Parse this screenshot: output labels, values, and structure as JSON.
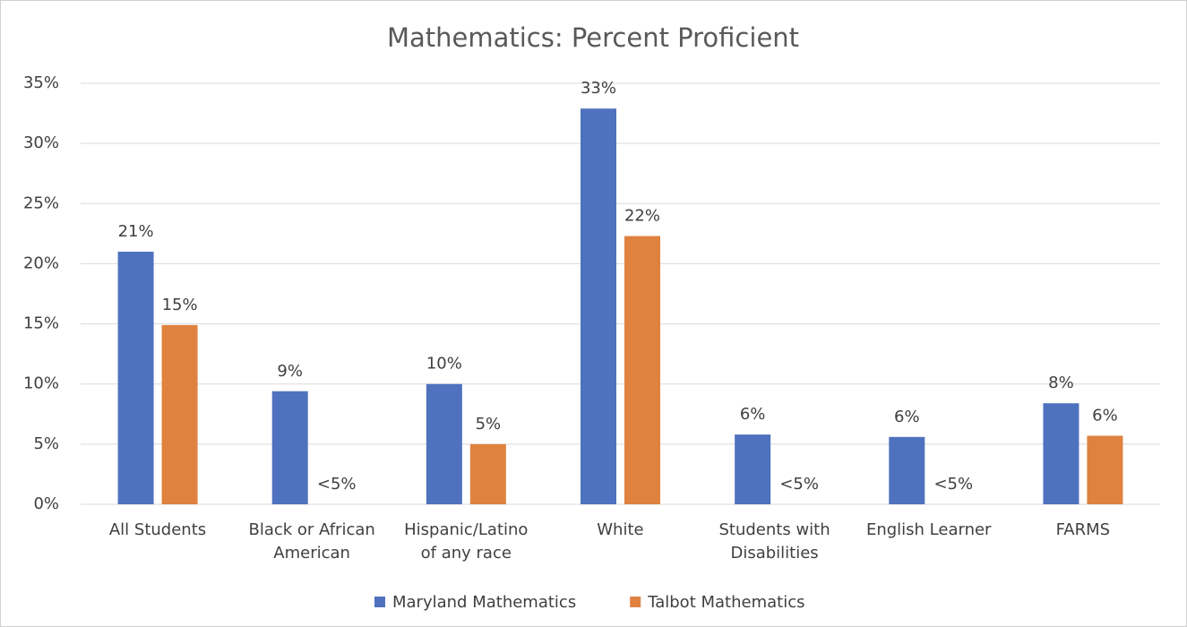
{
  "chart_data": {
    "type": "bar",
    "title": "Mathematics: Percent Proficient",
    "categories": [
      "All Students",
      "Black or African\nAmerican",
      "Hispanic/Latino\nof any race",
      "White",
      "Students with\nDisabilities",
      "English Learner",
      "FARMS"
    ],
    "series": [
      {
        "name": "Maryland Mathematics",
        "color": "#4f72bf",
        "values": [
          21,
          9.4,
          10,
          32.9,
          5.8,
          5.6,
          8.4
        ],
        "value_labels": [
          "21%",
          "9%",
          "10%",
          "33%",
          "6%",
          "6%",
          "8%"
        ]
      },
      {
        "name": "Talbot Mathematics",
        "color": "#e0823f",
        "values": [
          14.9,
          null,
          5,
          22.3,
          null,
          null,
          5.7
        ],
        "value_labels": [
          "15%",
          "<5%",
          "5%",
          "22%",
          "<5%",
          "<5%",
          "6%"
        ]
      }
    ],
    "ylim": [
      0,
      35
    ],
    "yticks": [
      {
        "value": 0,
        "label": "0%"
      },
      {
        "value": 5,
        "label": "5%"
      },
      {
        "value": 10,
        "label": "10%"
      },
      {
        "value": 15,
        "label": "15%"
      },
      {
        "value": 20,
        "label": "20%"
      },
      {
        "value": 25,
        "label": "25%"
      },
      {
        "value": 30,
        "label": "30%"
      },
      {
        "value": 35,
        "label": "35%"
      }
    ],
    "grid": true,
    "legend": "bottom"
  }
}
